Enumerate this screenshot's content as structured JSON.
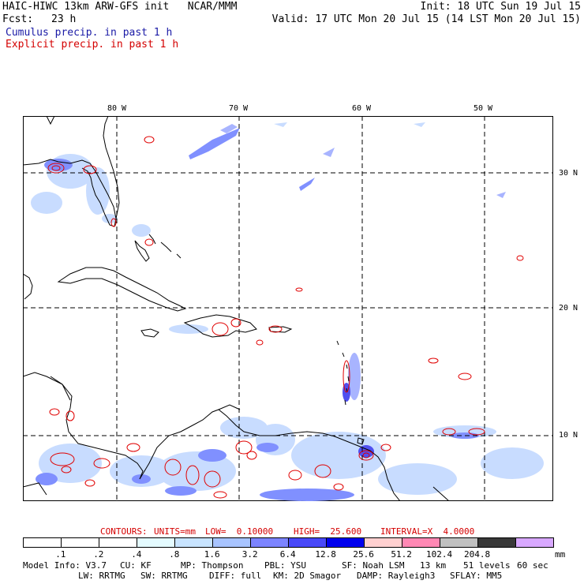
{
  "header": {
    "model_title": "HAIC-HIWC 13km ARW-GFS init   NCAR/MMM",
    "init": "Init: 18 UTC Sun 19 Jul 15",
    "fcst_label": "Fcst:",
    "fcst_value": "23 h",
    "valid": "Valid: 17 UTC Mon 20 Jul 15 (14 LST Mon 20 Jul 15)",
    "field1": "Cumulus precip. in past 1 h",
    "field2": "Explicit precip. in past 1 h"
  },
  "map": {
    "lon_labels": [
      "80 W",
      "70 W",
      "60 W",
      "50 W"
    ],
    "lat_labels": [
      "30 N",
      "20 N",
      "10 N"
    ],
    "colors": {
      "land_outline": "#000000",
      "grid": "#000000",
      "explicit_contour": "#e00000",
      "cumulus_light": "#c8dcff",
      "cumulus_mid": "#8090ff",
      "cumulus_heavy": "#3030e0"
    }
  },
  "contour_info": {
    "contours": "CONTOURS:",
    "units": "UNITS=mm",
    "low": "LOW=  0.10000",
    "high": "HIGH=  25.600",
    "interval": "INTERVAL=X  4.0000"
  },
  "colorbar": {
    "unit": "mm",
    "labels": [
      ".1",
      ".2",
      ".4",
      ".8",
      "1.6",
      "3.2",
      "6.4",
      "12.8",
      "25.6",
      "51.2",
      "102.4",
      "204.8"
    ],
    "colors": [
      "#ffffff",
      "#ffffff",
      "#ffffff",
      "#e4fbff",
      "#c8e4ff",
      "#a8c4ff",
      "#7c84ff",
      "#4848f8",
      "#0000ee",
      "#ffd0d0",
      "#ff88b4",
      "#c0c0c0",
      "#383838",
      "#d8a8ff"
    ]
  },
  "model_info": {
    "line1": [
      "Model Info: V3.7",
      "CU: KF",
      "MP: Thompson",
      "PBL: YSU",
      "SF: Noah LSM",
      "13 km",
      "51 levels",
      "60 sec"
    ],
    "line2": [
      "LW: RRTMG",
      "SW: RRTMG",
      "DIFF: full",
      "KM: 2D Smagor",
      "DAMP: Rayleigh3",
      "SFLAY: MM5"
    ]
  }
}
